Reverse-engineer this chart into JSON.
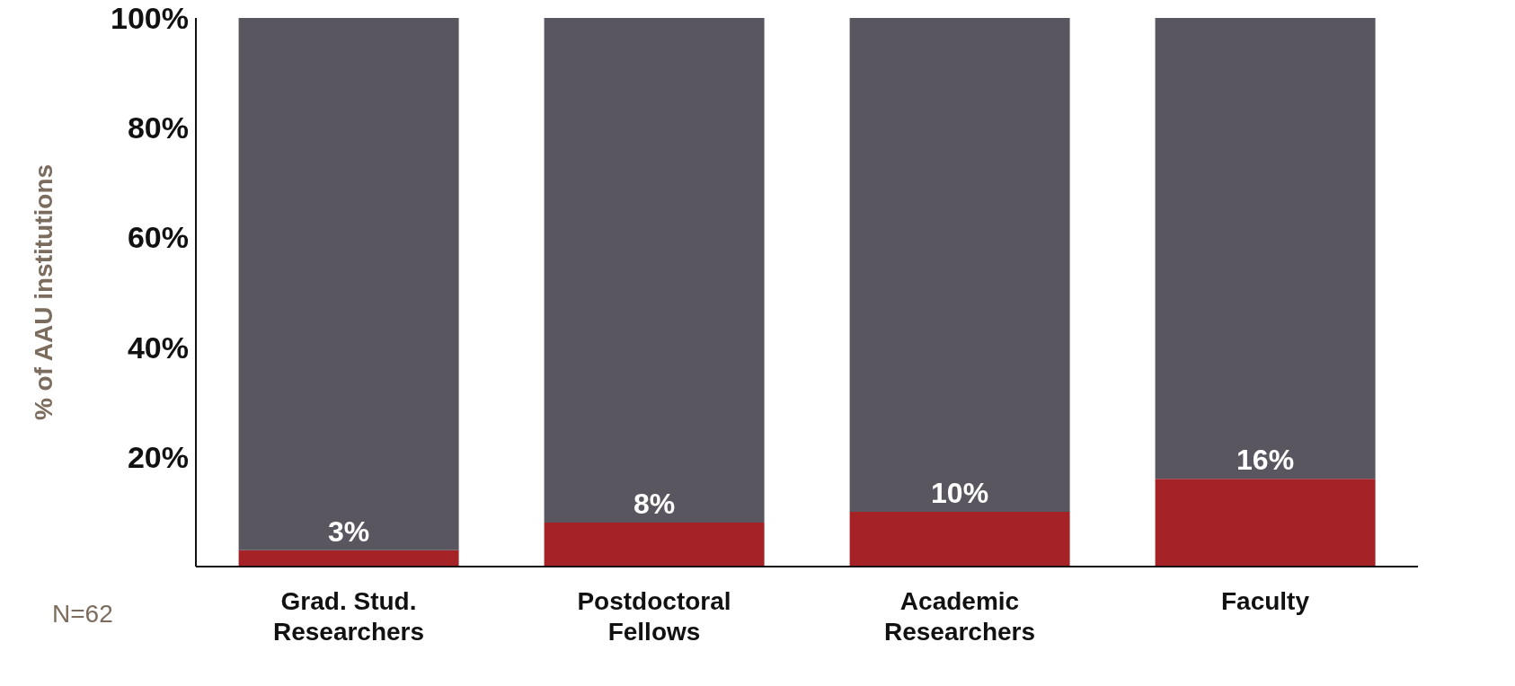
{
  "chart_data": {
    "type": "bar",
    "stacked": true,
    "ylabel": "% of AAU institutions",
    "categories": [
      "Grad. Stud.\nResearchers",
      "Postdoctoral\nFellows",
      "Academic\nResearchers",
      "Faculty"
    ],
    "series": [
      {
        "color": "#a52327",
        "values": [
          3,
          8,
          10,
          16
        ],
        "value_labels": [
          "3%",
          "8%",
          "10%",
          "16%"
        ]
      },
      {
        "color": "#5a5660",
        "values": [
          97,
          92,
          90,
          84
        ]
      }
    ],
    "ylim": [
      0,
      100
    ],
    "yticks": [
      {
        "value": 20,
        "label": "20%"
      },
      {
        "value": 40,
        "label": "40%"
      },
      {
        "value": 60,
        "label": "60%"
      },
      {
        "value": 80,
        "label": "80%"
      },
      {
        "value": 100,
        "label": "100%"
      }
    ],
    "annotations": [
      "N=62"
    ]
  }
}
